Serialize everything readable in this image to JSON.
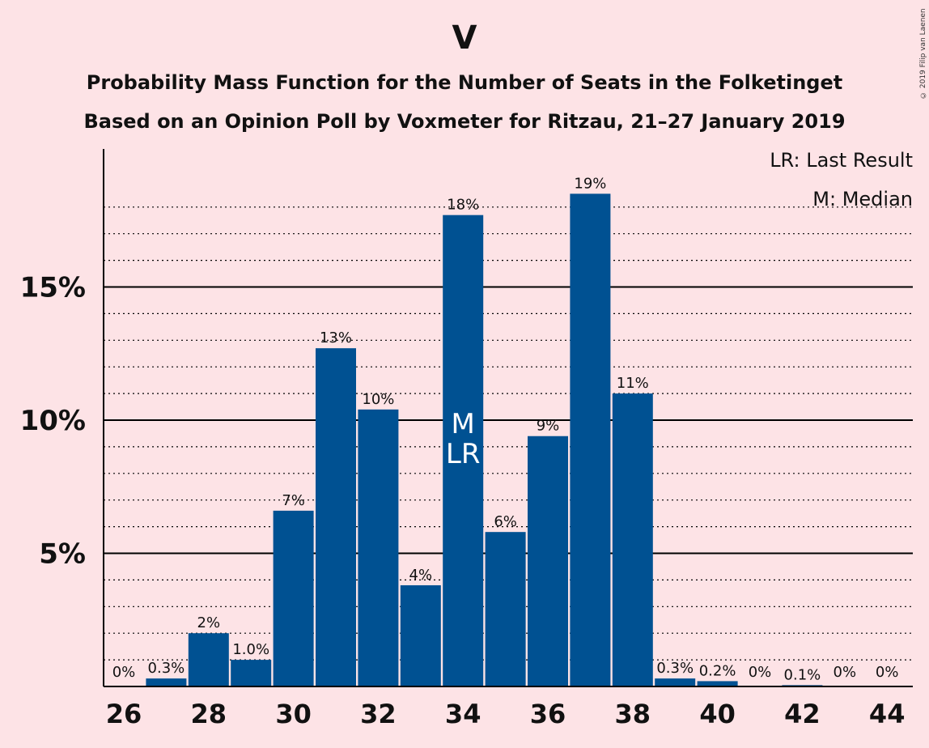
{
  "header": {
    "title": "V",
    "subtitle1": "Probability Mass Function for the Number of Seats in the Folketinget",
    "subtitle2": "Based on an Opinion Poll by Voxmeter for Ritzau, 21–27 January 2019",
    "copyright": "© 2019 Filip van Laenen"
  },
  "legend": {
    "lr": "LR: Last Result",
    "m": "M: Median"
  },
  "colors": {
    "bar": "#005192",
    "background": "#fde3e6",
    "axis": "#000000"
  },
  "chart_data": {
    "type": "bar",
    "x": [
      26,
      27,
      28,
      29,
      30,
      31,
      32,
      33,
      34,
      35,
      36,
      37,
      38,
      39,
      40,
      41,
      42,
      43,
      44
    ],
    "values": [
      0,
      0.3,
      2.0,
      1.0,
      6.6,
      12.7,
      10.4,
      3.8,
      17.7,
      5.8,
      9.4,
      18.5,
      11.0,
      0.3,
      0.2,
      0,
      0.05,
      0,
      0
    ],
    "value_labels": [
      "0%",
      "0.3%",
      "2%",
      "1.0%",
      "7%",
      "13%",
      "10%",
      "4%",
      "18%",
      "6%",
      "9%",
      "19%",
      "11%",
      "0.3%",
      "0.2%",
      "0%",
      "0.1%",
      "0%",
      "0%"
    ],
    "x_tick_labels": [
      "26",
      "28",
      "30",
      "32",
      "34",
      "36",
      "38",
      "40",
      "42",
      "44"
    ],
    "y_tick_labels": [
      "5%",
      "10%",
      "15%"
    ],
    "y_ticks": [
      5,
      10,
      15
    ],
    "ylim": [
      0,
      20
    ],
    "median_seat": 34,
    "last_result_seat": 34,
    "median_marker": "M",
    "last_result_marker": "LR",
    "grid": "dotted minor every 1%, solid major every 5%",
    "legend_position": "top-right"
  }
}
